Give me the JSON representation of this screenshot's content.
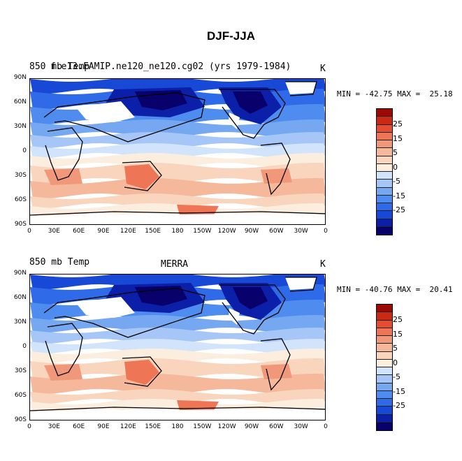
{
  "title": "DJF-JJA",
  "units": "K",
  "colors": {
    "levels": [
      "#08006b",
      "#0c1fa8",
      "#1848d6",
      "#2f6ae8",
      "#4f8cf0",
      "#76a8f2",
      "#a5c6f6",
      "#d2e4fb",
      "#fbeede",
      "#f9d5bd",
      "#f5b89a",
      "#f2987a",
      "#ee7556",
      "#e54c30",
      "#cc2914",
      "#9b0a04"
    ]
  },
  "colorbar": {
    "labels": [
      "25",
      "15",
      "5",
      "0",
      "-5",
      "-15",
      "-25"
    ]
  },
  "axes": {
    "y_ticks": [
      "90N",
      "60N",
      "30N",
      "0",
      "30S",
      "60S",
      "90S"
    ],
    "x_ticks": [
      "0",
      "30E",
      "60E",
      "90E",
      "120E",
      "150E",
      "180",
      "150W",
      "120W",
      "90W",
      "60W",
      "30W",
      "0"
    ]
  },
  "panels": [
    {
      "left_label": "850 mb Temp",
      "center_label": "f.e13.FAMIP.ne120_ne120.cg02 (yrs 1979-1984)",
      "right_label": "K",
      "min": "-42.75",
      "max": "25.18",
      "minmax_text": "MIN = -42.75 MAX =  25.18"
    },
    {
      "left_label": "850 mb Temp",
      "center_label": "MERRA",
      "right_label": "K",
      "min": "-40.76",
      "max": "20.41",
      "minmax_text": "MIN = -40.76 MAX =  20.41"
    }
  ]
}
